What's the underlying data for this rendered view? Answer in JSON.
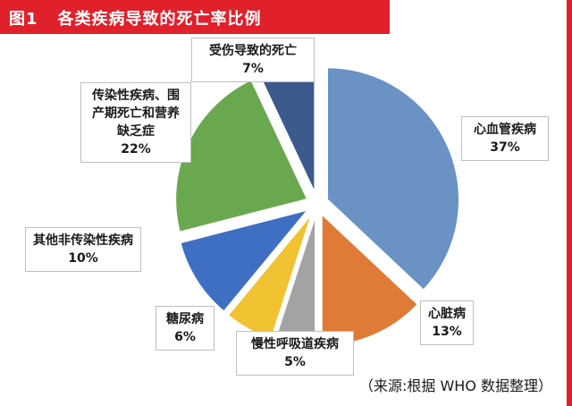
{
  "header": {
    "figure_no": "图1",
    "title": "各类疾病导致的死亡率比例"
  },
  "source_note": "（来源:根据 WHO 数据整理）",
  "colors": {
    "frame": "#e0202a",
    "slices": [
      "#6a92c4",
      "#e07a37",
      "#a3a3a3",
      "#f1c232",
      "#3f6fc2",
      "#6aa84f",
      "#3c5a8c"
    ]
  },
  "chart_data": {
    "type": "pie",
    "title": "各类疾病导致的死亡率比例",
    "slices": [
      {
        "label": "心血管疾病",
        "value": 37,
        "pct_label": "37%"
      },
      {
        "label": "心脏病",
        "value": 13,
        "pct_label": "13%"
      },
      {
        "label": "慢性呼吸道疾病",
        "value": 5,
        "pct_label": "5%"
      },
      {
        "label": "糖尿病",
        "value": 6,
        "pct_label": "6%"
      },
      {
        "label": "其他非传染性疾病",
        "value": 10,
        "pct_label": "10%"
      },
      {
        "label": "传染性疾病、围产期死亡和营养缺乏症",
        "value": 22,
        "pct_label": "22%"
      },
      {
        "label": "受伤导致的死亡",
        "value": 7,
        "pct_label": "7%"
      }
    ],
    "start": "12 o'clock",
    "direction": "clockwise",
    "exploded": true,
    "legend": "none"
  }
}
